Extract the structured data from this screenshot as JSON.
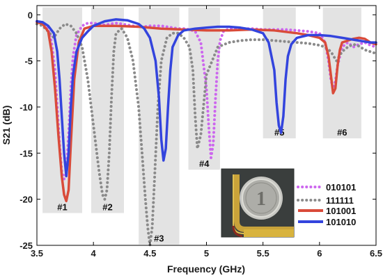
{
  "chart_data": {
    "type": "line",
    "xlabel": "Frequency (GHz)",
    "ylabel": "S21 (dB)",
    "xlim": [
      3.5,
      6.5
    ],
    "ylim": [
      -25,
      1
    ],
    "x_ticks": [
      3.5,
      4,
      4.5,
      5,
      5.5,
      6,
      6.5
    ],
    "y_ticks": [
      0,
      -5,
      -10,
      -15,
      -20,
      -25
    ],
    "x_tick_labels": [
      "3.5",
      "4",
      "4.5",
      "5",
      "5.5",
      "6",
      "6.5"
    ],
    "y_tick_labels": [
      "0",
      "-5",
      "-10",
      "-15",
      "-20",
      "-25"
    ],
    "grid": false,
    "legend_position": "bottom-right",
    "bands": [
      {
        "label": "#1",
        "x_range": [
          3.55,
          3.9
        ],
        "y_range": [
          -21.5,
          0.8
        ]
      },
      {
        "label": "#2",
        "x_range": [
          3.98,
          4.27
        ],
        "y_range": [
          -21.5,
          0.8
        ]
      },
      {
        "label": "#3",
        "x_range": [
          4.4,
          4.76
        ],
        "y_range": [
          -24.9,
          0.8
        ]
      },
      {
        "label": "#4",
        "x_range": [
          4.84,
          5.12
        ],
        "y_range": [
          -16.8,
          0.8
        ]
      },
      {
        "label": "#5",
        "x_range": [
          5.5,
          5.79
        ],
        "y_range": [
          -13.4,
          0.8
        ]
      },
      {
        "label": "#6",
        "x_range": [
          6.03,
          6.37
        ],
        "y_range": [
          -13.4,
          0.8
        ]
      }
    ],
    "series": [
      {
        "name": "010101",
        "color": "#cc66ee",
        "style": "dotted",
        "x": [
          3.5,
          3.55,
          3.6,
          3.63,
          3.66,
          3.68,
          3.7,
          3.72,
          3.74,
          3.76,
          3.78,
          3.8,
          3.82,
          3.85,
          3.9,
          3.95,
          4.0,
          4.05,
          4.1,
          4.15,
          4.2,
          4.25,
          4.3,
          4.35,
          4.4,
          4.45,
          4.5,
          4.55,
          4.6,
          4.65,
          4.7,
          4.75,
          4.8,
          4.85,
          4.9,
          4.95,
          5.0,
          5.02,
          5.04,
          5.06,
          5.08,
          5.1,
          5.12,
          5.15,
          5.2,
          5.3,
          5.4,
          5.5,
          5.6,
          5.7,
          5.8,
          5.9,
          6.0,
          6.05,
          6.08,
          6.1,
          6.12,
          6.14,
          6.16,
          6.2,
          6.25,
          6.3,
          6.35,
          6.4,
          6.45,
          6.5
        ],
        "y": [
          -0.7,
          -0.9,
          -1.5,
          -3.0,
          -6.0,
          -10.0,
          -14.0,
          -17.0,
          -17.8,
          -17.2,
          -13.0,
          -8.0,
          -4.5,
          -2.2,
          -1.2,
          -0.9,
          -0.9,
          -1.0,
          -1.1,
          -1.0,
          -0.9,
          -1.0,
          -1.1,
          -1.2,
          -1.3,
          -1.3,
          -1.2,
          -1.2,
          -1.2,
          -1.3,
          -1.4,
          -1.5,
          -1.5,
          -1.6,
          -1.8,
          -3.0,
          -8.0,
          -12.0,
          -15.5,
          -14.0,
          -9.0,
          -5.0,
          -2.8,
          -1.8,
          -1.5,
          -1.5,
          -1.5,
          -1.6,
          -1.6,
          -1.6,
          -1.7,
          -1.8,
          -2.0,
          -3.0,
          -5.0,
          -7.0,
          -8.0,
          -7.2,
          -5.5,
          -3.5,
          -3.0,
          -3.5,
          -3.2,
          -3.0,
          -3.3,
          -3.5
        ]
      },
      {
        "name": "111111",
        "color": "#8a8a8a",
        "style": "dotted",
        "x": [
          3.5,
          3.55,
          3.6,
          3.65,
          3.7,
          3.75,
          3.8,
          3.85,
          3.9,
          3.95,
          4.0,
          4.05,
          4.08,
          4.1,
          4.12,
          4.14,
          4.16,
          4.18,
          4.2,
          4.25,
          4.3,
          4.35,
          4.4,
          4.43,
          4.46,
          4.48,
          4.5,
          4.52,
          4.54,
          4.57,
          4.6,
          4.65,
          4.7,
          4.75,
          4.8,
          4.85,
          4.88,
          4.9,
          4.92,
          4.95,
          5.0,
          5.1,
          5.2,
          5.3,
          5.4,
          5.5,
          5.6,
          5.7,
          5.8,
          5.9,
          6.0,
          6.05,
          6.1,
          6.15,
          6.2,
          6.25,
          6.3,
          6.35,
          6.4,
          6.45,
          6.5
        ],
        "y": [
          -1.0,
          -1.2,
          -1.8,
          -2.5,
          -1.5,
          -1.0,
          -1.2,
          -2.0,
          -3.5,
          -7.0,
          -12.0,
          -17.0,
          -19.5,
          -20.0,
          -19.0,
          -15.0,
          -9.0,
          -4.0,
          -2.0,
          -1.5,
          -2.5,
          -5.0,
          -10.0,
          -15.0,
          -20.0,
          -23.0,
          -25.0,
          -23.0,
          -18.0,
          -10.0,
          -5.0,
          -2.5,
          -2.0,
          -2.0,
          -2.5,
          -3.5,
          -6.0,
          -11.0,
          -14.5,
          -13.0,
          -6.5,
          -3.5,
          -3.0,
          -2.8,
          -2.7,
          -2.7,
          -2.8,
          -2.9,
          -3.0,
          -3.1,
          -3.3,
          -3.5,
          -4.0,
          -5.0,
          -4.0,
          -3.5,
          -3.2,
          -3.4,
          -3.8,
          -4.0,
          -4.2
        ]
      },
      {
        "name": "101001",
        "color": "#d94b3a",
        "style": "solid",
        "x": [
          3.5,
          3.55,
          3.6,
          3.63,
          3.66,
          3.69,
          3.72,
          3.74,
          3.76,
          3.78,
          3.8,
          3.83,
          3.87,
          3.92,
          4.0,
          4.2,
          4.4,
          4.6,
          4.8,
          5.0,
          5.2,
          5.4,
          5.6,
          5.8,
          5.9,
          6.0,
          6.05,
          6.08,
          6.1,
          6.12,
          6.14,
          6.16,
          6.18,
          6.2,
          6.25,
          6.3,
          6.35,
          6.4,
          6.45,
          6.5
        ],
        "y": [
          -0.8,
          -1.0,
          -1.8,
          -4.0,
          -8.0,
          -13.0,
          -17.5,
          -19.5,
          -20.2,
          -19.0,
          -14.0,
          -7.0,
          -3.0,
          -1.5,
          -1.2,
          -1.2,
          -1.3,
          -1.5,
          -1.6,
          -1.7,
          -1.7,
          -1.6,
          -1.7,
          -2.0,
          -2.2,
          -2.5,
          -3.0,
          -4.5,
          -6.5,
          -8.5,
          -8.0,
          -5.5,
          -3.8,
          -3.0,
          -2.8,
          -2.6,
          -2.5,
          -2.6,
          -3.0,
          -3.2
        ]
      },
      {
        "name": "101010",
        "color": "#3344dd",
        "style": "solid",
        "x": [
          3.5,
          3.55,
          3.6,
          3.65,
          3.68,
          3.7,
          3.72,
          3.74,
          3.76,
          3.78,
          3.8,
          3.82,
          3.85,
          3.9,
          3.95,
          4.0,
          4.1,
          4.2,
          4.3,
          4.4,
          4.45,
          4.5,
          4.55,
          4.58,
          4.6,
          4.62,
          4.64,
          4.66,
          4.68,
          4.7,
          4.75,
          4.8,
          4.9,
          5.0,
          5.1,
          5.2,
          5.3,
          5.4,
          5.5,
          5.55,
          5.6,
          5.62,
          5.64,
          5.66,
          5.68,
          5.7,
          5.72,
          5.75,
          5.8,
          5.9,
          6.0,
          6.1,
          6.2,
          6.3,
          6.4,
          6.45,
          6.5
        ],
        "y": [
          -0.7,
          -0.8,
          -1.2,
          -2.0,
          -4.0,
          -7.0,
          -11.0,
          -15.0,
          -17.5,
          -15.0,
          -10.0,
          -6.5,
          -4.0,
          -2.5,
          -1.8,
          -1.2,
          -0.7,
          -0.5,
          -0.6,
          -1.0,
          -1.5,
          -2.5,
          -5.0,
          -9.0,
          -13.5,
          -15.8,
          -14.5,
          -10.0,
          -6.0,
          -3.5,
          -2.2,
          -1.7,
          -1.5,
          -1.4,
          -1.3,
          -1.3,
          -1.4,
          -1.6,
          -2.0,
          -3.0,
          -6.0,
          -9.5,
          -12.0,
          -12.8,
          -11.0,
          -7.0,
          -4.5,
          -3.2,
          -2.5,
          -2.2,
          -2.2,
          -2.3,
          -2.5,
          -2.7,
          -2.9,
          -3.0,
          -3.0
        ]
      }
    ]
  },
  "inset_photo": {
    "description_icon": "coin-photo-icon",
    "coin_numeral": "1"
  }
}
